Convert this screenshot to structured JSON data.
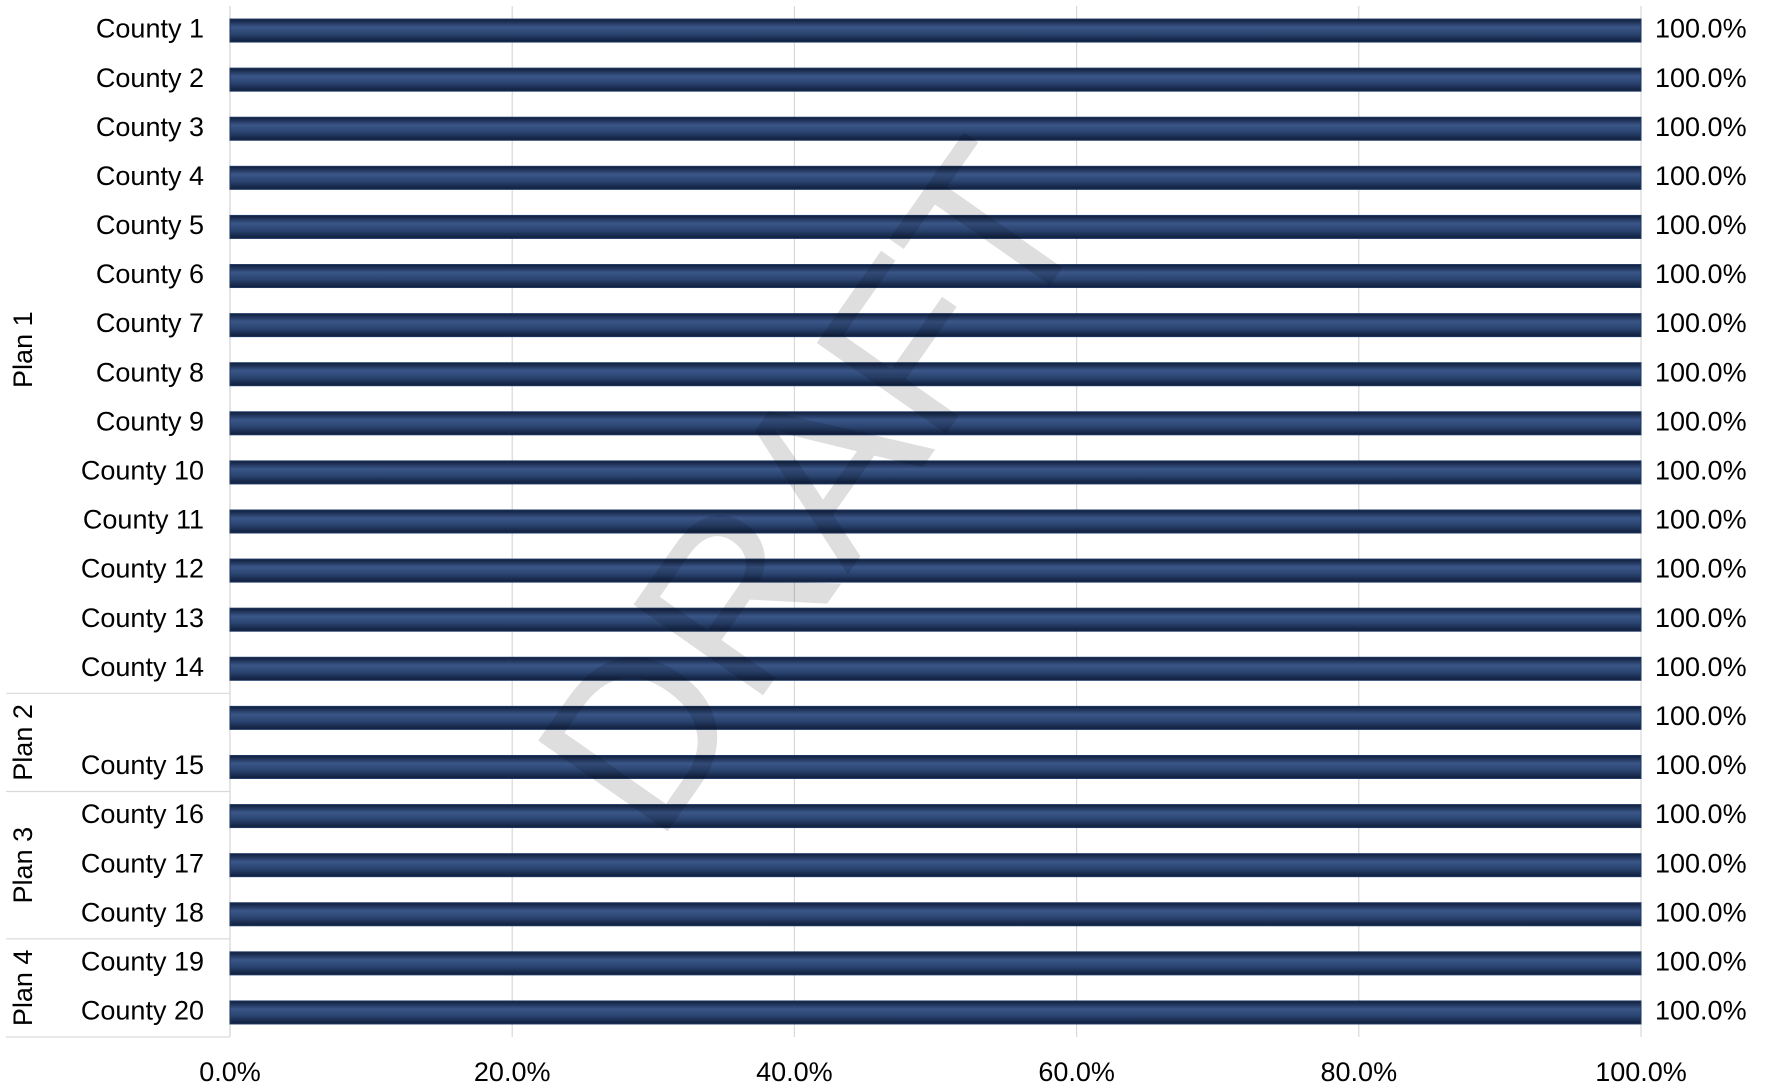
{
  "chart_data": {
    "type": "bar",
    "orientation": "horizontal",
    "watermark": "DRAFT",
    "categories": [
      "County 1",
      "County 2",
      "County 3",
      "County 4",
      "County 5",
      "County 6",
      "County 7",
      "County 8",
      "County 9",
      "County 10",
      "County 11",
      "County 12",
      "County 13",
      "County 14",
      null,
      "County 15",
      "County 16",
      "County 17",
      "County 18",
      "County 19",
      "County 20"
    ],
    "category_groups": [
      "Plan 1",
      "Plan 1",
      "Plan 1",
      "Plan 1",
      "Plan 1",
      "Plan 1",
      "Plan 1",
      "Plan 1",
      "Plan 1",
      "Plan 1",
      "Plan 1",
      "Plan 1",
      "Plan 1",
      "Plan 1",
      "Plan 2",
      "Plan 2",
      "Plan 3",
      "Plan 3",
      "Plan 3",
      "Plan 4",
      "Plan 4"
    ],
    "values": [
      100,
      100,
      100,
      100,
      100,
      100,
      100,
      100,
      100,
      100,
      100,
      100,
      100,
      100,
      100,
      100,
      100,
      100,
      100,
      100,
      100
    ],
    "value_labels": [
      "100.0%",
      "100.0%",
      "100.0%",
      "100.0%",
      "100.0%",
      "100.0%",
      "100.0%",
      "100.0%",
      "100.0%",
      "100.0%",
      "100.0%",
      "100.0%",
      "100.0%",
      "100.0%",
      "100.0%",
      "100.0%",
      "100.0%",
      "100.0%",
      "100.0%",
      "100.0%",
      "100.0%"
    ],
    "color": "#1f3864",
    "xlim": [
      0,
      100
    ],
    "xticks": [
      {
        "value": 0,
        "label": "0.0%"
      },
      {
        "value": 20,
        "label": "20.0%"
      },
      {
        "value": 40,
        "label": "40.0%"
      },
      {
        "value": 60,
        "label": "60.0%"
      },
      {
        "value": 80,
        "label": "80.0%"
      },
      {
        "value": 100,
        "label": "100.0%"
      }
    ],
    "grid": true
  }
}
